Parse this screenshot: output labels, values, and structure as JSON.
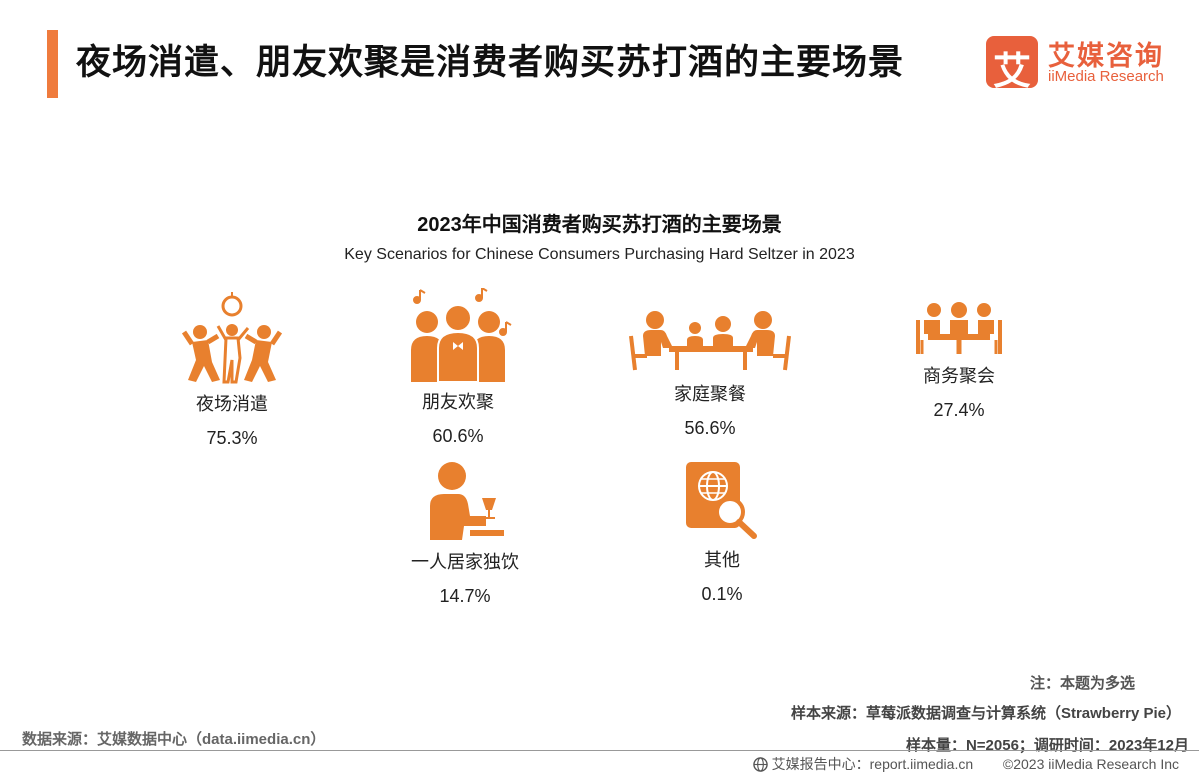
{
  "header": {
    "title": "夜场消遣、朋友欢聚是消费者购买苏打酒的主要场景",
    "logo_mark": "艾",
    "logo_cn": "艾媒咨询",
    "logo_en": "iiMedia Research"
  },
  "colors": {
    "accent": "#ef7b3d",
    "icon": "#e8802e",
    "logo": "#e8603c"
  },
  "chart_data": {
    "type": "table",
    "title": "2023年中国消费者购买苏打酒的主要场景",
    "subtitle": "Key Scenarios for Chinese Consumers Purchasing Hard Seltzer in 2023",
    "items": [
      {
        "label": "夜场消遣",
        "value": "75.3%",
        "icon": "dancing-people-icon"
      },
      {
        "label": "朋友欢聚",
        "value": "60.6%",
        "icon": "friends-group-icon"
      },
      {
        "label": "家庭聚餐",
        "value": "56.6%",
        "icon": "family-dinner-icon"
      },
      {
        "label": "商务聚会",
        "value": "27.4%",
        "icon": "business-meeting-icon"
      },
      {
        "label": "一人居家独饮",
        "value": "14.7%",
        "icon": "solo-drinking-icon"
      },
      {
        "label": "其他",
        "value": "0.1%",
        "icon": "globe-search-icon"
      }
    ]
  },
  "footer": {
    "note": "注：本题为多选",
    "sample_source": "样本来源：草莓派数据调查与计算系统（Strawberry Pie）",
    "data_source": "数据来源：艾媒数据中心（data.iimedia.cn）",
    "sample_size": "样本量：N=2056；调研时间：2023年12月",
    "report_center": "艾媒报告中心：report.iimedia.cn",
    "copyright": "©2023  iiMedia Research  Inc"
  }
}
